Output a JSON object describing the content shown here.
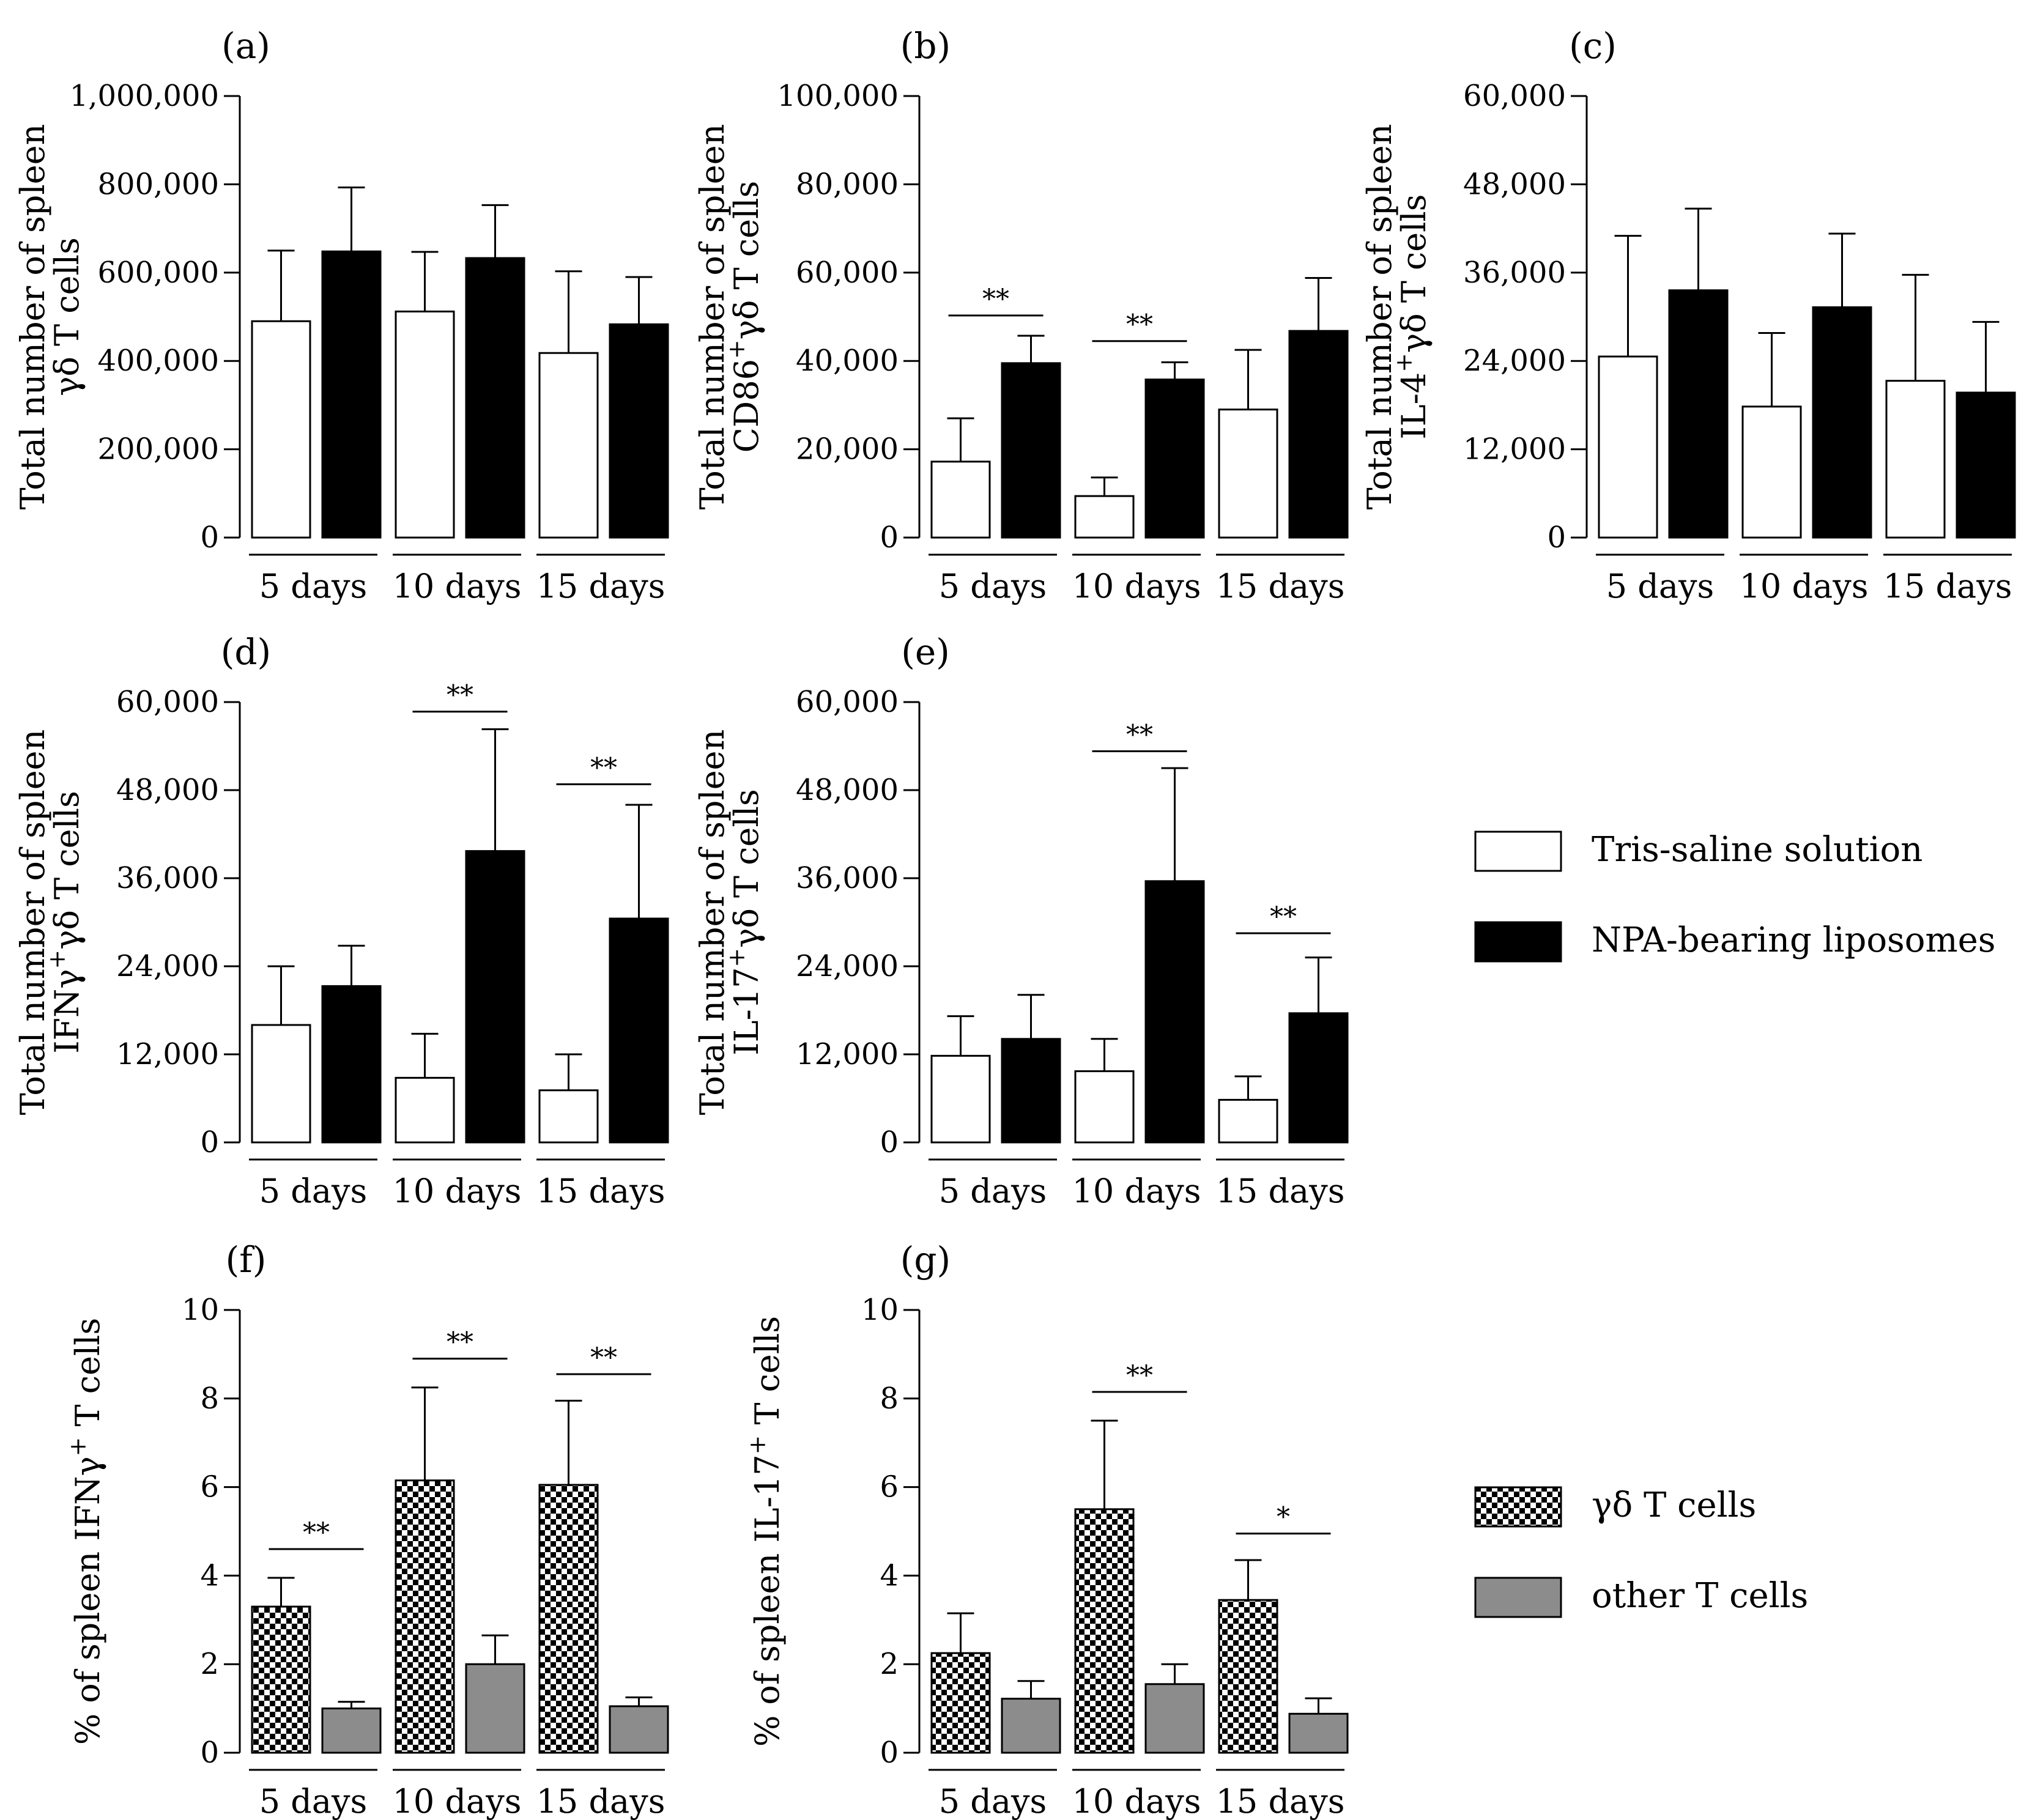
{
  "legends": [
    {
      "entries": [
        {
          "label": "Tris-saline solution",
          "style": "white"
        },
        {
          "label": "NPA-bearing liposomes",
          "style": "black"
        }
      ]
    },
    {
      "entries": [
        {
          "label": "γδ T cells",
          "style": "checker"
        },
        {
          "label": "other T cells",
          "style": "gray"
        }
      ]
    }
  ],
  "colors": {
    "white": "#ffffff",
    "black": "#000000",
    "gray": "#8c8c8c",
    "axis": "#000000"
  },
  "chart_data": [
    {
      "id": "a",
      "panel_label": "(a)",
      "type": "bar",
      "ylabel_lines": [
        "Total number of spleen",
        "γδ T cells"
      ],
      "ylim": [
        0,
        1000000
      ],
      "yticks": [
        0,
        200000,
        400000,
        600000,
        800000,
        1000000
      ],
      "ytick_labels": [
        "0",
        "200,000",
        "400,000",
        "600,000",
        "800,000",
        "1,000,000"
      ],
      "categories": [
        "5 days",
        "10 days",
        "15 days"
      ],
      "series": [
        {
          "name": "Tris-saline solution",
          "style": "white",
          "values": [
            490000,
            512000,
            418000
          ],
          "errors": [
            160000,
            135000,
            185000
          ]
        },
        {
          "name": "NPA-bearing liposomes",
          "style": "black",
          "values": [
            648000,
            633000,
            483000
          ],
          "errors": [
            145000,
            120000,
            107000
          ]
        }
      ],
      "significance": []
    },
    {
      "id": "b",
      "panel_label": "(b)",
      "type": "bar",
      "ylabel_lines": [
        "Total number of spleen",
        "CD86⁺γδ T cells"
      ],
      "ylim": [
        0,
        100000
      ],
      "yticks": [
        0,
        20000,
        40000,
        60000,
        80000,
        100000
      ],
      "ytick_labels": [
        "0",
        "20,000",
        "40,000",
        "60,000",
        "80,000",
        "100,000"
      ],
      "categories": [
        "5 days",
        "10 days",
        "15 days"
      ],
      "series": [
        {
          "name": "Tris-saline solution",
          "style": "white",
          "values": [
            17200,
            9400,
            29000
          ],
          "errors": [
            9800,
            4200,
            13500
          ]
        },
        {
          "name": "NPA-bearing liposomes",
          "style": "black",
          "values": [
            39500,
            35800,
            46800
          ],
          "errors": [
            6200,
            3900,
            12000
          ]
        }
      ],
      "significance": [
        {
          "category": 0,
          "label": "**",
          "y": 50300
        },
        {
          "category": 1,
          "label": "**",
          "y": 44500
        }
      ]
    },
    {
      "id": "c",
      "panel_label": "(c)",
      "type": "bar",
      "ylabel_lines": [
        "Total number of spleen",
        "IL-4⁺γδ T cells"
      ],
      "ylim": [
        0,
        60000
      ],
      "yticks": [
        0,
        12000,
        24000,
        36000,
        48000,
        60000
      ],
      "ytick_labels": [
        "0",
        "12,000",
        "24,000",
        "36,000",
        "48,000",
        "60,000"
      ],
      "categories": [
        "5 days",
        "10 days",
        "15 days"
      ],
      "series": [
        {
          "name": "Tris-saline solution",
          "style": "white",
          "values": [
            24600,
            17800,
            21300
          ],
          "errors": [
            16400,
            10000,
            14400
          ]
        },
        {
          "name": "NPA-bearing liposomes",
          "style": "black",
          "values": [
            33600,
            31300,
            19700
          ],
          "errors": [
            11100,
            10000,
            9600
          ]
        }
      ],
      "significance": []
    },
    {
      "id": "d",
      "panel_label": "(d)",
      "type": "bar",
      "ylabel_lines": [
        "Total number of spleen",
        "IFNγ⁺γδ T cells"
      ],
      "ylim": [
        0,
        60000
      ],
      "yticks": [
        0,
        12000,
        24000,
        36000,
        48000,
        60000
      ],
      "ytick_labels": [
        "0",
        "12,000",
        "24,000",
        "36,000",
        "48,000",
        "60,000"
      ],
      "categories": [
        "5 days",
        "10 days",
        "15 days"
      ],
      "series": [
        {
          "name": "Tris-saline solution",
          "style": "white",
          "values": [
            16000,
            8800,
            7100
          ],
          "errors": [
            8000,
            6000,
            4900
          ]
        },
        {
          "name": "NPA-bearing liposomes",
          "style": "black",
          "values": [
            21300,
            39700,
            30500
          ],
          "errors": [
            5500,
            16600,
            15500
          ]
        }
      ],
      "significance": [
        {
          "category": 1,
          "label": "**",
          "y": 58700
        },
        {
          "category": 2,
          "label": "**",
          "y": 48800
        }
      ]
    },
    {
      "id": "e",
      "panel_label": "(e)",
      "type": "bar",
      "ylabel_lines": [
        "Total number of spleen",
        "IL-17⁺γδ T cells"
      ],
      "ylim": [
        0,
        60000
      ],
      "yticks": [
        0,
        12000,
        24000,
        36000,
        48000,
        60000
      ],
      "ytick_labels": [
        "0",
        "12,000",
        "24,000",
        "36,000",
        "48,000",
        "60,000"
      ],
      "categories": [
        "5 days",
        "10 days",
        "15 days"
      ],
      "series": [
        {
          "name": "Tris-saline solution",
          "style": "white",
          "values": [
            11800,
            9700,
            5800
          ],
          "errors": [
            5400,
            4400,
            3200
          ]
        },
        {
          "name": "NPA-bearing liposomes",
          "style": "black",
          "values": [
            14100,
            35600,
            17600
          ],
          "errors": [
            6000,
            15400,
            7600
          ]
        }
      ],
      "significance": [
        {
          "category": 1,
          "label": "**",
          "y": 53300
        },
        {
          "category": 2,
          "label": "**",
          "y": 28500
        }
      ]
    },
    {
      "id": "f",
      "panel_label": "(f)",
      "type": "bar",
      "ylabel_lines": [
        "% of spleen IFNγ⁺ T cells"
      ],
      "ylim": [
        0,
        10
      ],
      "yticks": [
        0,
        2,
        4,
        6,
        8,
        10
      ],
      "ytick_labels": [
        "0",
        "2",
        "4",
        "6",
        "8",
        "10"
      ],
      "categories": [
        "5 days",
        "10 days",
        "15 days"
      ],
      "series": [
        {
          "name": "γδ T cells",
          "style": "checker",
          "values": [
            3.3,
            6.15,
            6.05
          ],
          "errors": [
            0.65,
            2.1,
            1.9
          ]
        },
        {
          "name": "other T cells",
          "style": "gray",
          "values": [
            1.0,
            2.0,
            1.05
          ],
          "errors": [
            0.15,
            0.65,
            0.2
          ]
        }
      ],
      "significance": [
        {
          "category": 0,
          "label": "**",
          "y": 4.6
        },
        {
          "category": 1,
          "label": "**",
          "y": 8.9
        },
        {
          "category": 2,
          "label": "**",
          "y": 8.55
        }
      ]
    },
    {
      "id": "g",
      "panel_label": "(g)",
      "type": "bar",
      "ylabel_lines": [
        "% of spleen IL-17⁺ T cells"
      ],
      "ylim": [
        0,
        10
      ],
      "yticks": [
        0,
        2,
        4,
        6,
        8,
        10
      ],
      "ytick_labels": [
        "0",
        "2",
        "4",
        "6",
        "8",
        "10"
      ],
      "categories": [
        "5 days",
        "10 days",
        "15 days"
      ],
      "series": [
        {
          "name": "γδ T cells",
          "style": "checker",
          "values": [
            2.25,
            5.5,
            3.45
          ],
          "errors": [
            0.9,
            2.0,
            0.9
          ]
        },
        {
          "name": "other T cells",
          "style": "gray",
          "values": [
            1.22,
            1.55,
            0.88
          ],
          "errors": [
            0.4,
            0.45,
            0.35
          ]
        }
      ],
      "significance": [
        {
          "category": 1,
          "label": "**",
          "y": 8.15
        },
        {
          "category": 2,
          "label": "*",
          "y": 4.95
        }
      ]
    }
  ]
}
